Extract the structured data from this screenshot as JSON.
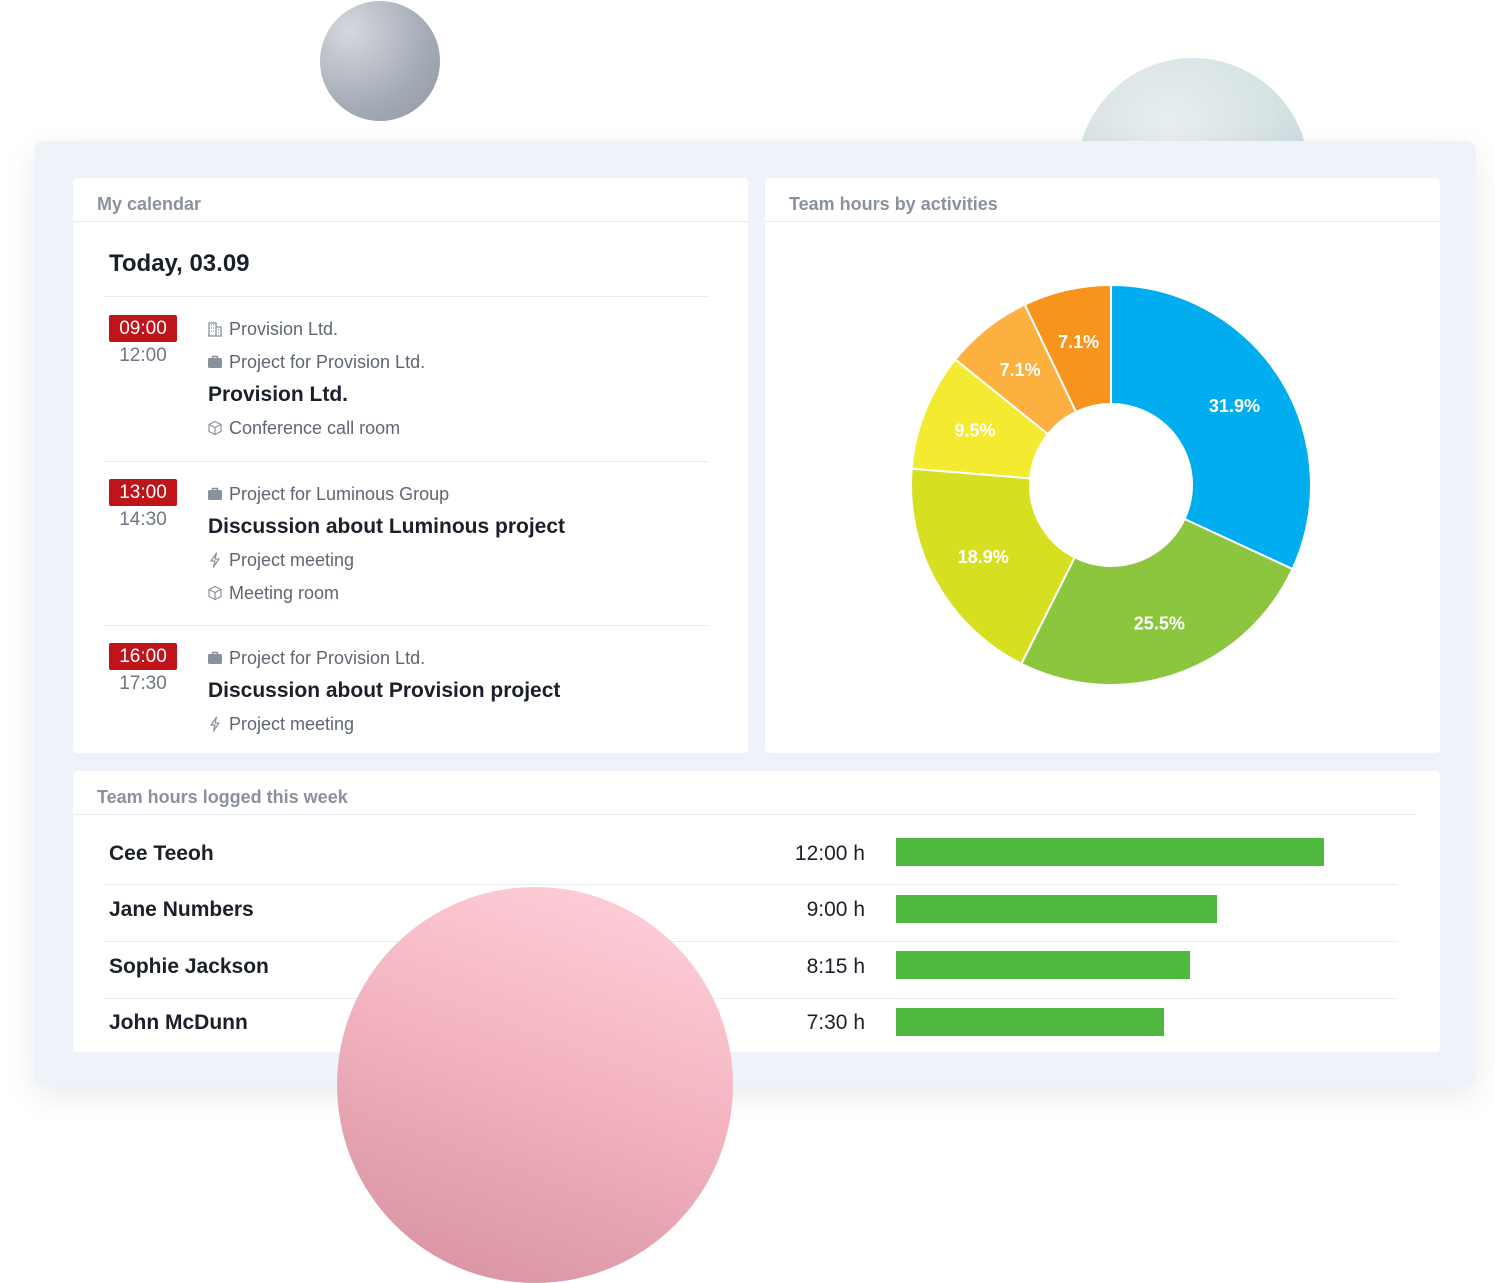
{
  "calendar": {
    "header": "My calendar",
    "today": "Today, 03.09",
    "events": [
      {
        "start": "09:00",
        "end": "12:00",
        "client": "Provision Ltd.",
        "project": "Project for Provision Ltd.",
        "title": "Provision Ltd.",
        "location": "Conference call room"
      },
      {
        "start": "13:00",
        "end": "14:30",
        "project": "Project for Luminous Group",
        "title": "Discussion about Luminous project",
        "type": "Project meeting",
        "location": "Meeting room"
      },
      {
        "start": "16:00",
        "end": "17:30",
        "project": "Project for Provision Ltd.",
        "title": "Discussion about Provision project",
        "type": "Project meeting"
      }
    ],
    "icons": {
      "client": "building-icon",
      "project": "briefcase-icon",
      "location": "cube-icon",
      "type": "lightning-icon"
    }
  },
  "activities": {
    "header": "Team hours by activities",
    "chart_data": {
      "type": "pie",
      "donut": true,
      "values": [
        31.9,
        25.5,
        18.9,
        9.5,
        7.1,
        7.1
      ],
      "labels": [
        "31.9%",
        "25.5%",
        "18.9%",
        "9.5%",
        "7.1%",
        "7.1%"
      ],
      "colors": [
        "#00aeef",
        "#8cc63f",
        "#d7df21",
        "#f4ea2f",
        "#fbb040",
        "#f7941d"
      ]
    }
  },
  "week": {
    "header": "Team hours logged this week",
    "rows": [
      {
        "name": "Cee Teeoh",
        "hours": "12:00 h",
        "value": 12.0
      },
      {
        "name": "Jane Numbers",
        "hours": "9:00 h",
        "value": 9.0
      },
      {
        "name": "Sophie Jackson",
        "hours": "8:15 h",
        "value": 8.25
      },
      {
        "name": "John McDunn",
        "hours": "7:30 h",
        "value": 7.5
      }
    ],
    "bar_color": "#4fb83f"
  }
}
